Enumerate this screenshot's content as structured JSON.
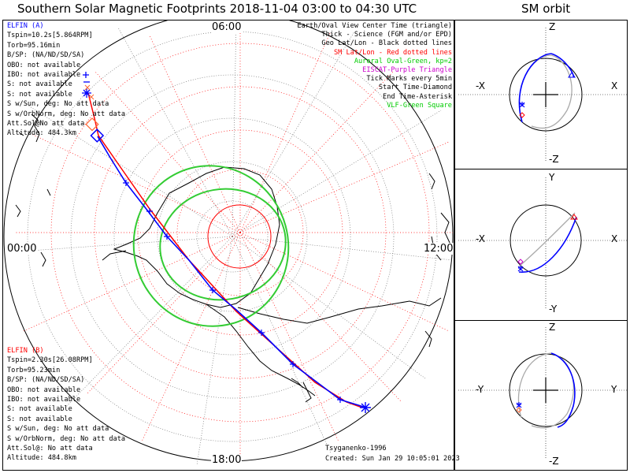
{
  "title": "Southern Solar Magnetic Footprints 2018-11-04 03:00 to 04:30 UTC",
  "orbit_title": "SM orbit",
  "mlt_labels": {
    "top": "06:00",
    "left": "00:00",
    "right": "12:00",
    "bottom": "18:00"
  },
  "elfin_a": {
    "name": "ELFIN (A)",
    "color": "#0000ff",
    "lines": [
      "Tspin=10.2s[5.864RPM]",
      "Torb=95.16min",
      "B/SP: (NA/ND/SD/SA)",
      "OBO: not available",
      "IBO: not available",
      "S: not available",
      "S: not available",
      "S w/Sun, deg: No att data",
      "S w/OrbNorm, deg: No att data",
      "Att.Sol@No att data",
      "Altitude: 484.3km"
    ]
  },
  "elfin_b": {
    "name": "ELFIN (B)",
    "color": "#ff0000",
    "lines": [
      "Tspin=2.30s[26.08RPM]",
      "Torb=95.23min",
      "B/SP: (NA/ND/SD/SA)",
      "OBO: not available",
      "IBO: not available",
      "S: not available",
      "S: not available",
      "S w/Sun, deg: No att data",
      "S w/OrbNorm, deg: No att data",
      "Att.Sol@: No att data",
      "Altitude: 484.8km"
    ]
  },
  "legend": [
    {
      "text": "Earth/Oval View Center Time (triangle)",
      "color": "#000000"
    },
    {
      "text": "Thick - Science (FGM and/or EPD)",
      "color": "#000000"
    },
    {
      "text": "Geo Lat/Lon - Black dotted lines",
      "color": "#000000"
    },
    {
      "text": "SM Lat/Lon - Red dotted lines",
      "color": "#ff0000"
    },
    {
      "text": "Auroral Oval-Green, kp=2",
      "color": "#00cc00"
    },
    {
      "text": "EISCAT-Purple Triangle",
      "color": "#cc00cc"
    },
    {
      "text": "Tick Marks every 5min",
      "color": "#000000"
    },
    {
      "text": "Start Time-Diamond",
      "color": "#000000"
    },
    {
      "text": "End Time-Asterisk",
      "color": "#000000"
    },
    {
      "text": "VLF-Green Square",
      "color": "#00cc00"
    }
  ],
  "footer": {
    "credit": "Tsyganenko-1996",
    "created": "Created: Sun Jan 29 10:05:01 2023"
  },
  "orbit_panels": [
    {
      "top": "Z",
      "bottom": "-Z",
      "left": "-X",
      "right": "X"
    },
    {
      "top": "Y",
      "bottom": "-Y",
      "left": "-X",
      "right": "X"
    },
    {
      "top": "Z",
      "bottom": "-Z",
      "left": "-Y",
      "right": "Y"
    }
  ],
  "colors": {
    "orbit_a": "#0000ff",
    "orbit_b": "#ff0000",
    "oval": "#00cc00",
    "grid_sm": "#ff0000",
    "grid_geo": "#000000"
  }
}
